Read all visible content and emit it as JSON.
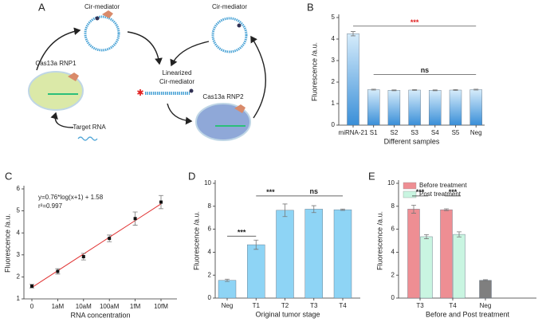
{
  "diagram": {
    "panel_label": "A",
    "cir_top": "Cir-mediator",
    "cir_right": "Cir-mediator",
    "rnp1": "Cas13a RNP1",
    "rnp2": "Cas13a RNP2",
    "linearized": [
      "Linearized",
      "Cir-mediator"
    ],
    "target": "Target RNA"
  },
  "chart_data": [
    {
      "panel": "B",
      "type": "bar",
      "categories": [
        "miRNA-21",
        "S1",
        "S2",
        "S3",
        "S4",
        "S5",
        "Neg"
      ],
      "values": [
        4.25,
        1.65,
        1.62,
        1.63,
        1.62,
        1.63,
        1.65
      ],
      "errors": [
        0.1,
        0.02,
        0.02,
        0.02,
        0.02,
        0.02,
        0.02
      ],
      "color": "#3a8fd8",
      "color_top": "#d6ecfb",
      "ylim": [
        0,
        5
      ],
      "yticks": [
        0,
        1,
        2,
        3,
        4,
        5
      ],
      "ylabel": "Fluorescence /a.u.",
      "xlabel": "Different samples",
      "annotations": [
        {
          "text": "***",
          "color": "#e02020"
        },
        {
          "text": "ns",
          "color": "#222222"
        }
      ]
    },
    {
      "panel": "C",
      "type": "scatter",
      "categories": [
        "0",
        "1aM",
        "10aM",
        "100aM",
        "1fM",
        "10fM"
      ],
      "values": [
        1.58,
        2.25,
        2.92,
        3.75,
        4.65,
        5.4
      ],
      "errors": [
        0.08,
        0.12,
        0.15,
        0.15,
        0.3,
        0.3
      ],
      "color": "#111111",
      "fit": {
        "color": "#e03030",
        "values": [
          1.52,
          2.28,
          3.04,
          3.8,
          4.56,
          5.32
        ]
      },
      "ylim": [
        1,
        6
      ],
      "yticks": [
        1,
        2,
        3,
        4,
        5,
        6
      ],
      "ylabel": "Fluorescence /a.u.",
      "xlabel": "RNA concentration",
      "annotations": [
        {
          "text": "y=0.76*log(x+1) + 1.58",
          "color": "#222222"
        },
        {
          "text": "r²=0.997",
          "color": "#222222"
        }
      ]
    },
    {
      "panel": "D",
      "type": "bar",
      "categories": [
        "Neg",
        "T1",
        "T2",
        "T3",
        "T4"
      ],
      "values": [
        1.55,
        4.65,
        7.65,
        7.75,
        7.7
      ],
      "errors": [
        0.1,
        0.4,
        0.55,
        0.3,
        0.06
      ],
      "color": "#8ed4f5",
      "ylim": [
        0,
        10
      ],
      "yticks": [
        0,
        2,
        4,
        6,
        8,
        10
      ],
      "ylabel": "Fluorescence /a.u.",
      "xlabel": "Original tumor stage",
      "annotations": [
        {
          "text": "***",
          "color": "#222222"
        },
        {
          "text": "***",
          "color": "#222222"
        },
        {
          "text": "ns",
          "color": "#222222"
        }
      ]
    },
    {
      "panel": "E",
      "type": "grouped_bar",
      "categories": [
        "T3",
        "T4",
        "Neg"
      ],
      "series": [
        {
          "name": "Before treatment",
          "color": "#ee8e93",
          "values": [
            7.75,
            7.7,
            null
          ],
          "errors": [
            0.35,
            0.08,
            null
          ]
        },
        {
          "name": "Post treatment",
          "color": "#c9f5e1",
          "values": [
            5.35,
            5.55,
            null
          ],
          "errors": [
            0.18,
            0.22,
            null
          ]
        }
      ],
      "single": {
        "color": "#7f7f7f",
        "values": [
          null,
          null,
          1.55
        ],
        "errors": [
          null,
          null,
          0.05
        ]
      },
      "ylim": [
        0,
        10
      ],
      "yticks": [
        0,
        2,
        4,
        6,
        8,
        10
      ],
      "ylabel": "Fluorescence /a.u.",
      "xlabel": "Before and Post treatment",
      "legend": "upper left",
      "annotations": [
        {
          "text": "***",
          "color": "#222222"
        },
        {
          "text": "***",
          "color": "#222222"
        }
      ]
    }
  ]
}
